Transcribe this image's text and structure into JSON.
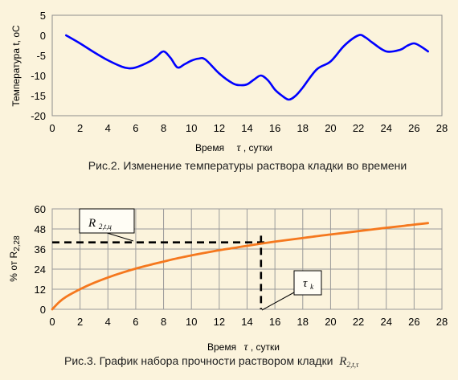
{
  "charts": [
    {
      "ylabel": "Температура  t, oC",
      "xlabel_word": "Время",
      "xlabel_symbol": "τ",
      "xlabel_unit": ", сутки",
      "caption": "Рис.2. Изменение температуры раствора кладки во времени"
    },
    {
      "ylabel": "% от R",
      "ylabel_sub": "2,28",
      "xlabel_word": "Время",
      "xlabel_symbol": "τ",
      "xlabel_unit": ", сутки",
      "caption_text": "Рис.3. График набора прочности раствором кладки",
      "caption_symbol": "R",
      "caption_symbol_sub": "2,t,τ",
      "annotation_r_main": "R",
      "annotation_r_sub": "2,t,ц",
      "annotation_tau_main": "τ",
      "annotation_tau_sub": "k"
    }
  ],
  "chart_data": [
    {
      "type": "line",
      "series": [
        {
          "color": "#0000ff",
          "x": [
            1,
            2,
            3,
            4,
            5,
            5.5,
            6,
            7,
            7.5,
            8,
            8.5,
            9,
            9.5,
            10,
            10.5,
            11,
            12,
            13,
            13.5,
            14,
            14.5,
            15,
            15.5,
            16,
            16.5,
            17,
            17.5,
            18,
            19,
            20,
            21,
            22,
            22.5,
            23,
            24,
            25,
            25.5,
            26,
            26.5,
            27
          ],
          "y": [
            0,
            -2,
            -4.2,
            -6.2,
            -7.8,
            -8.2,
            -8,
            -6.5,
            -5.3,
            -4,
            -5.6,
            -8,
            -7.2,
            -6.3,
            -5.8,
            -6,
            -9.5,
            -12,
            -12.4,
            -12.2,
            -11,
            -10,
            -11.2,
            -13.5,
            -15,
            -16,
            -15,
            -13,
            -8.5,
            -6.5,
            -2.5,
            0,
            -0.5,
            -1.8,
            -4,
            -3.6,
            -2.6,
            -2,
            -2.8,
            -4
          ]
        }
      ],
      "xlim": [
        0,
        28
      ],
      "ylim": [
        -20,
        5
      ],
      "xticks": [
        0,
        2,
        4,
        6,
        8,
        10,
        12,
        14,
        16,
        18,
        20,
        22,
        24,
        26,
        28
      ],
      "yticks": [
        5,
        0,
        -5,
        -10,
        -15,
        -20
      ],
      "grid": false
    },
    {
      "type": "line",
      "series": [
        {
          "color": "#f5781e",
          "x": [
            0,
            0.5,
            1,
            2,
            3,
            4,
            5,
            6,
            7,
            8,
            9,
            10,
            11,
            12,
            13,
            14,
            15,
            16,
            17,
            18,
            19,
            20,
            21,
            22,
            23,
            24,
            25,
            26,
            27
          ],
          "y": [
            0,
            4.3,
            7.5,
            12,
            15.8,
            19,
            21.8,
            24.3,
            26.5,
            28.5,
            30.5,
            32.2,
            33.8,
            35.3,
            36.6,
            37.9,
            39.2,
            40.4,
            41.5,
            42.6,
            43.7,
            44.7,
            45.7,
            46.7,
            47.7,
            48.7,
            49.6,
            50.6,
            51.5
          ]
        }
      ],
      "xlim": [
        0,
        28
      ],
      "ylim": [
        0,
        60
      ],
      "xticks": [
        0,
        2,
        4,
        6,
        8,
        10,
        12,
        14,
        16,
        18,
        20,
        22,
        24,
        26,
        28
      ],
      "yticks": [
        0,
        12,
        24,
        36,
        48,
        60
      ],
      "grid": true,
      "reference_lines": {
        "y": 40,
        "x": 15
      }
    }
  ]
}
